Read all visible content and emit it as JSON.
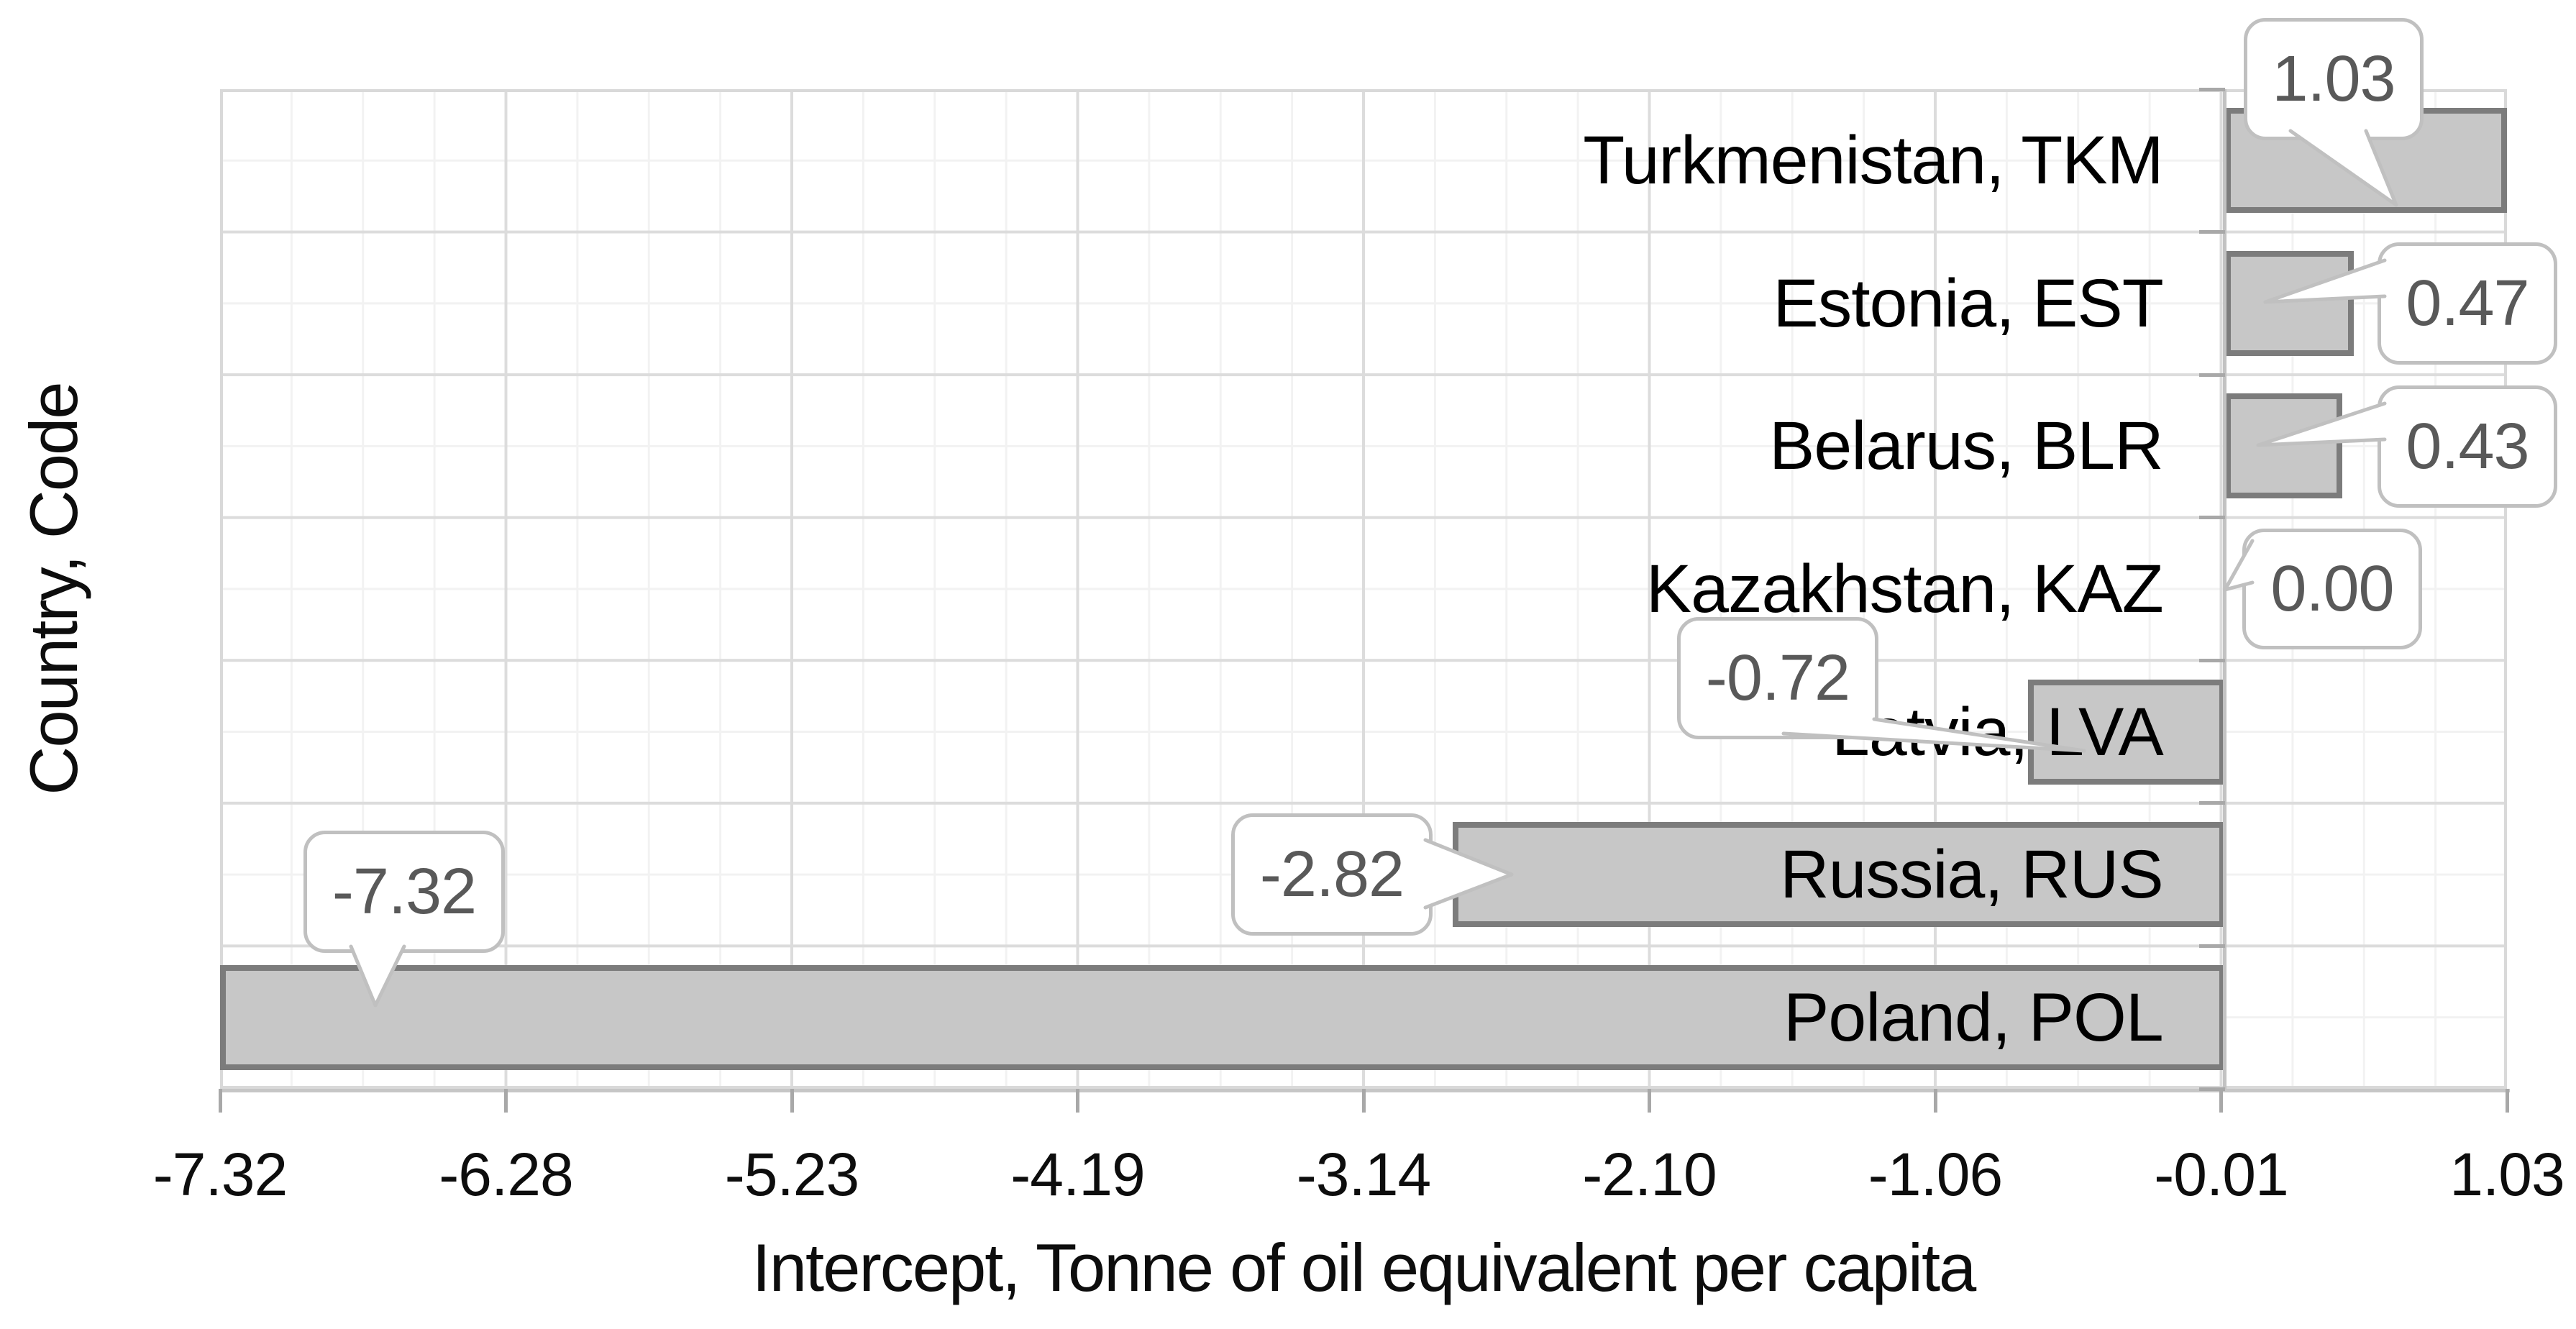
{
  "chart_data": {
    "type": "bar",
    "orientation": "horizontal",
    "title": "",
    "xlabel": "Intercept, Tonne of oil equivalent per capita",
    "ylabel": "Country, Code",
    "categories": [
      "Turkmenistan, TKM",
      "Estonia, EST",
      "Belarus, BLR",
      "Kazakhstan, KAZ",
      "Latvia, LVA",
      "Russia, RUS",
      "Poland, POL"
    ],
    "values": [
      1.03,
      0.47,
      0.43,
      0.0,
      -0.72,
      -2.82,
      -7.32
    ],
    "data_labels": [
      "1.03",
      "0.47",
      "0.43",
      "0.00",
      "-0.72",
      "-2.82",
      "-7.32"
    ],
    "x_ticks": [
      "-7.32",
      "-6.28",
      "-5.23",
      "-4.19",
      "-3.14",
      "-2.10",
      "-1.06",
      "-0.01",
      "1.03"
    ],
    "xlim": [
      -7.32,
      1.03
    ],
    "categories_count": 7,
    "grid": "major and minor gridlines on both axes",
    "legend_position": "none",
    "colors": {
      "bar_fill": "#c7c7c7",
      "bar_border": "#7c7c7c",
      "major_grid": "#dcdcdc",
      "minor_grid": "#f2f2f2",
      "axis_line": "#c6c6c6",
      "tick_mark": "#a8a8a8",
      "callout_border": "#c0c0c0",
      "callout_text": "#595959",
      "text": "#000000"
    }
  }
}
